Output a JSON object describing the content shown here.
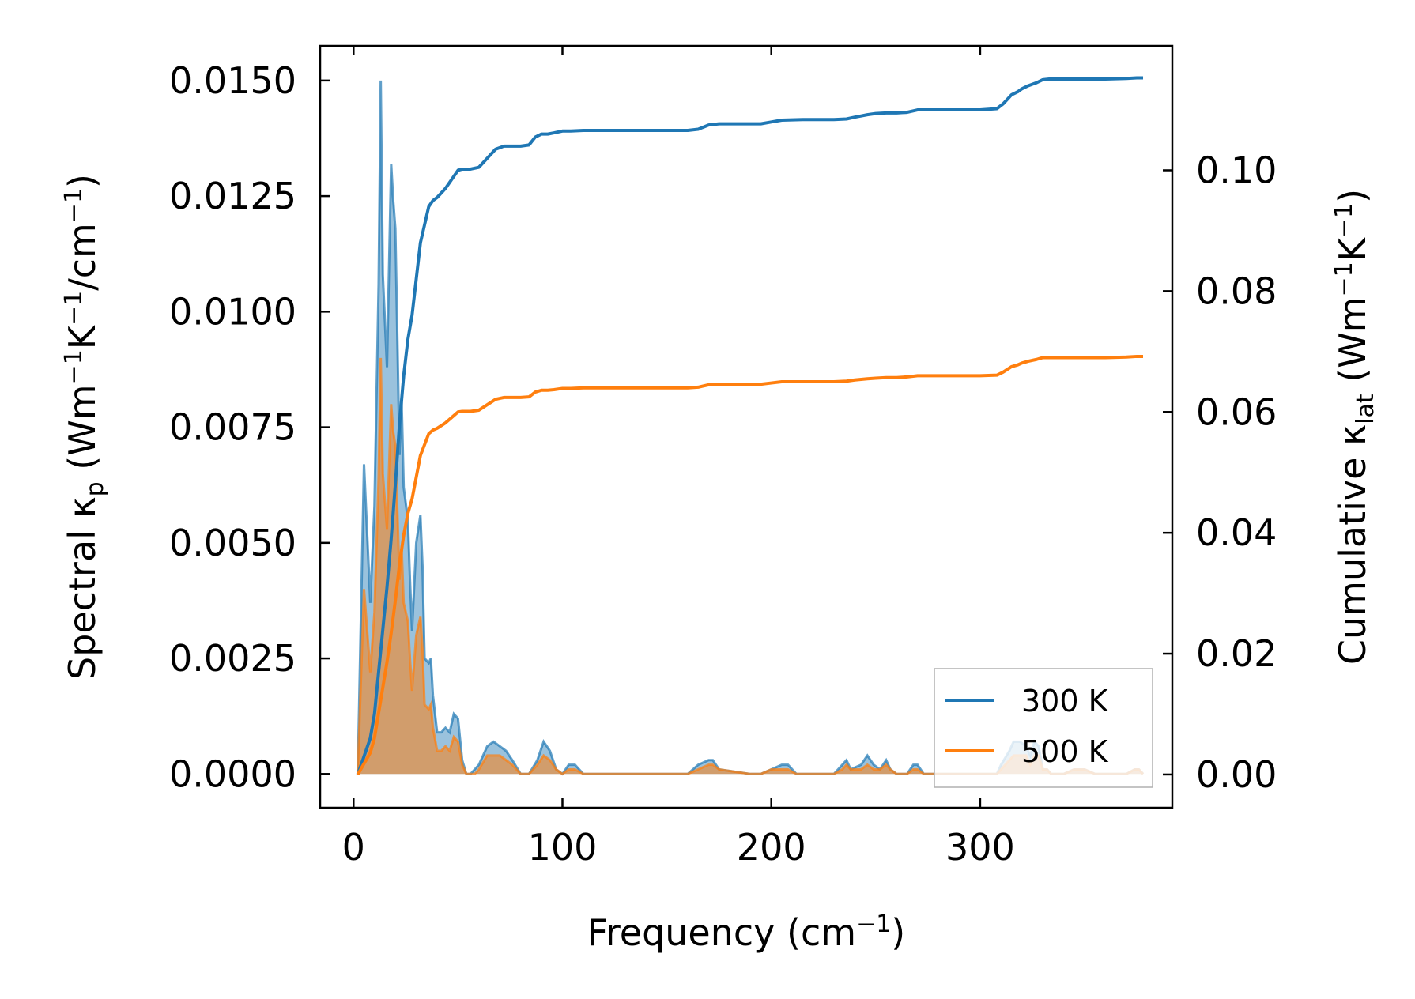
{
  "chart_data": {
    "type": "line",
    "xlabel_main": "Frequency (cm",
    "xlabel_sup": "−1",
    "xlabel_end": ")",
    "ylabel_left_main": "Spectral κ",
    "ylabel_left_sub": "p",
    "ylabel_left_units_a": " (Wm",
    "ylabel_left_units_sup1": "−1",
    "ylabel_left_units_b": "K",
    "ylabel_left_units_sup2": "−1",
    "ylabel_left_units_c": "/cm",
    "ylabel_left_units_sup3": "−1",
    "ylabel_left_units_d": ")",
    "ylabel_right_main": "Cumulative κ",
    "ylabel_right_sub": "lat",
    "ylabel_right_units_a": " (Wm",
    "ylabel_right_units_sup1": "−1",
    "ylabel_right_units_b": "K",
    "ylabel_right_units_sup2": "−1",
    "ylabel_right_units_c": ")",
    "xlim": [
      -16,
      392
    ],
    "ylim_left": [
      -0.00073,
      0.01575
    ],
    "ylim_right": [
      -0.0055,
      0.1206
    ],
    "x_ticks": [
      0,
      100,
      200,
      300
    ],
    "x_tick_labels": [
      "0",
      "100",
      "200",
      "300"
    ],
    "y_left_ticks": [
      0.0,
      0.0025,
      0.005,
      0.0075,
      0.01,
      0.0125,
      0.015
    ],
    "y_left_tick_labels": [
      "0.0000",
      "0.0025",
      "0.0050",
      "0.0075",
      "0.0100",
      "0.0125",
      "0.0150"
    ],
    "y_right_ticks": [
      0.0,
      0.02,
      0.04,
      0.06,
      0.08,
      0.1
    ],
    "y_right_tick_labels": [
      "0.00",
      "0.02",
      "0.04",
      "0.06",
      "0.08",
      "0.10"
    ],
    "legend_position": "lower-right",
    "series": [
      {
        "name": "300 K",
        "color": "#1f77b4",
        "spectral_x": [
          2,
          5,
          8,
          10,
          12,
          13,
          14,
          16,
          18,
          19,
          20,
          22,
          23,
          24,
          26,
          27,
          28,
          30,
          32,
          33,
          34,
          36,
          37,
          38,
          40,
          42,
          44,
          46,
          48,
          50,
          52,
          54,
          56,
          58,
          60,
          64,
          67,
          70,
          73,
          76,
          80,
          84,
          88,
          91,
          94,
          97,
          100,
          103,
          106,
          110,
          115,
          120,
          140,
          160,
          165,
          170,
          172,
          175,
          190,
          195,
          200,
          205,
          208,
          212,
          220,
          230,
          234,
          236,
          238,
          243,
          246,
          249,
          252,
          255,
          257,
          260,
          265,
          268,
          270,
          273,
          280,
          300,
          308,
          310,
          314,
          316,
          319,
          322,
          324,
          326,
          328,
          330,
          332,
          334,
          336,
          340,
          345,
          350,
          355,
          360,
          365,
          370,
          374,
          376,
          378
        ],
        "spectral_y": [
          0.0,
          0.0067,
          0.0037,
          0.0058,
          0.0106,
          0.015,
          0.0108,
          0.0088,
          0.0132,
          0.0124,
          0.0118,
          0.0069,
          0.0081,
          0.0062,
          0.0055,
          0.0042,
          0.0031,
          0.005,
          0.0056,
          0.0045,
          0.0025,
          0.0024,
          0.0025,
          0.0017,
          0.0009,
          0.0009,
          0.001,
          0.0009,
          0.0013,
          0.0012,
          0.0003,
          0.0,
          0.0,
          0.0001,
          0.0002,
          0.0006,
          0.0007,
          0.0006,
          0.0005,
          0.0003,
          0.0,
          0.0,
          0.0003,
          0.0007,
          0.0005,
          0.0001,
          0.0,
          0.0002,
          0.0002,
          0.0,
          0.0,
          0.0,
          0.0,
          0.0,
          0.0002,
          0.0003,
          0.0003,
          0.0001,
          0.0,
          0.0,
          0.0001,
          0.0002,
          0.0002,
          0.0,
          0.0,
          0.0,
          0.0002,
          0.0003,
          0.0001,
          0.0002,
          0.0004,
          0.0002,
          0.0001,
          0.0003,
          0.0001,
          0.0,
          0.0,
          0.0002,
          0.0002,
          0.0,
          0.0,
          0.0,
          0.0,
          0.0002,
          0.0005,
          0.0007,
          0.0007,
          0.0006,
          0.0004,
          0.0007,
          0.0006,
          0.0001,
          0.0001,
          0.0,
          0.0,
          0.0,
          0.0001,
          0.0001,
          0.0,
          0.0,
          0.0,
          0.0,
          0.0001,
          0.0001,
          0.0
        ],
        "cumulative_x": [
          2,
          4,
          6,
          8,
          10,
          12,
          14,
          16,
          18,
          20,
          22,
          24,
          26,
          28,
          30,
          32,
          34,
          36,
          38,
          40,
          44,
          48,
          50,
          52,
          56,
          60,
          64,
          68,
          72,
          76,
          80,
          84,
          87,
          90,
          93,
          96,
          100,
          104,
          110,
          130,
          150,
          160,
          165,
          170,
          175,
          190,
          195,
          200,
          205,
          215,
          230,
          236,
          240,
          243,
          246,
          250,
          255,
          260,
          265,
          270,
          275,
          280,
          300,
          308,
          311,
          315,
          318,
          320,
          323,
          327,
          330,
          333,
          340,
          350,
          360,
          370,
          375,
          378
        ],
        "cumulative_y": [
          0.0,
          0.002,
          0.004,
          0.006,
          0.01,
          0.017,
          0.024,
          0.031,
          0.039,
          0.048,
          0.058,
          0.066,
          0.072,
          0.076,
          0.082,
          0.088,
          0.091,
          0.094,
          0.095,
          0.0955,
          0.097,
          0.099,
          0.1,
          0.1002,
          0.1002,
          0.1005,
          0.102,
          0.1035,
          0.104,
          0.104,
          0.104,
          0.1042,
          0.1055,
          0.106,
          0.106,
          0.1062,
          0.1065,
          0.1065,
          0.1066,
          0.1066,
          0.1066,
          0.1066,
          0.1068,
          0.1075,
          0.1077,
          0.1077,
          0.1077,
          0.108,
          0.1083,
          0.1084,
          0.1084,
          0.1085,
          0.1088,
          0.109,
          0.1092,
          0.1094,
          0.1095,
          0.1095,
          0.1096,
          0.11,
          0.11,
          0.11,
          0.11,
          0.1102,
          0.111,
          0.1125,
          0.113,
          0.1135,
          0.114,
          0.1145,
          0.115,
          0.1151,
          0.1151,
          0.1151,
          0.1151,
          0.1152,
          0.1153,
          0.1153
        ]
      },
      {
        "name": "500 K",
        "color": "#ff7f0e",
        "spectral_x": [
          2,
          5,
          8,
          10,
          12,
          13,
          14,
          16,
          18,
          19,
          20,
          22,
          23,
          24,
          26,
          27,
          28,
          30,
          32,
          33,
          34,
          36,
          37,
          38,
          40,
          42,
          44,
          46,
          48,
          50,
          52,
          54,
          56,
          58,
          60,
          64,
          67,
          70,
          73,
          76,
          80,
          84,
          88,
          91,
          94,
          97,
          100,
          103,
          106,
          110,
          115,
          120,
          140,
          160,
          165,
          170,
          172,
          175,
          190,
          195,
          200,
          205,
          208,
          212,
          220,
          230,
          234,
          236,
          238,
          243,
          246,
          249,
          252,
          255,
          257,
          260,
          265,
          268,
          270,
          273,
          280,
          300,
          308,
          310,
          314,
          316,
          319,
          322,
          324,
          326,
          328,
          330,
          332,
          334,
          336,
          340,
          345,
          350,
          355,
          360,
          365,
          370,
          374,
          376,
          378
        ],
        "spectral_y": [
          0.0,
          0.004,
          0.0022,
          0.0035,
          0.0064,
          0.009,
          0.0065,
          0.0053,
          0.008,
          0.0074,
          0.0071,
          0.0042,
          0.0049,
          0.0037,
          0.0033,
          0.0025,
          0.0018,
          0.003,
          0.0034,
          0.0027,
          0.0015,
          0.0014,
          0.0015,
          0.001,
          0.0005,
          0.0005,
          0.0006,
          0.0005,
          0.0008,
          0.0007,
          0.0002,
          0.0,
          0.0,
          0.0,
          0.0001,
          0.0004,
          0.0004,
          0.0004,
          0.0003,
          0.0002,
          0.0,
          0.0,
          0.0002,
          0.0004,
          0.0003,
          0.0001,
          0.0,
          0.0001,
          0.0001,
          0.0,
          0.0,
          0.0,
          0.0,
          0.0,
          0.0001,
          0.0002,
          0.0002,
          0.0001,
          0.0,
          0.0,
          0.0001,
          0.0001,
          0.0001,
          0.0,
          0.0,
          0.0,
          0.0001,
          0.0002,
          0.0001,
          0.0001,
          0.0002,
          0.0001,
          0.0001,
          0.0002,
          0.0001,
          0.0,
          0.0,
          0.0001,
          0.0001,
          0.0,
          0.0,
          0.0,
          0.0,
          0.0001,
          0.0003,
          0.0004,
          0.0004,
          0.0004,
          0.0002,
          0.0004,
          0.0004,
          0.0001,
          0.0001,
          0.0,
          0.0,
          0.0,
          0.0001,
          0.0001,
          0.0,
          0.0,
          0.0,
          0.0,
          0.0001,
          0.0001,
          0.0
        ],
        "cumulative_x": [
          2,
          4,
          6,
          8,
          10,
          12,
          14,
          16,
          18,
          20,
          22,
          24,
          26,
          28,
          30,
          32,
          34,
          36,
          38,
          40,
          44,
          48,
          50,
          52,
          56,
          60,
          64,
          68,
          72,
          76,
          80,
          84,
          87,
          90,
          93,
          96,
          100,
          104,
          110,
          130,
          150,
          160,
          165,
          170,
          175,
          190,
          195,
          200,
          205,
          215,
          230,
          236,
          240,
          243,
          246,
          250,
          255,
          260,
          265,
          270,
          275,
          280,
          300,
          308,
          311,
          315,
          318,
          320,
          323,
          327,
          330,
          333,
          340,
          350,
          360,
          370,
          375,
          378
        ],
        "cumulative_y": [
          0.0,
          0.0012,
          0.0024,
          0.0036,
          0.006,
          0.0102,
          0.0144,
          0.0186,
          0.0234,
          0.0288,
          0.0348,
          0.0396,
          0.0432,
          0.0456,
          0.0492,
          0.0528,
          0.0546,
          0.0564,
          0.057,
          0.0573,
          0.0582,
          0.0594,
          0.06,
          0.0601,
          0.0601,
          0.0603,
          0.0612,
          0.0621,
          0.0624,
          0.0624,
          0.0624,
          0.0625,
          0.0633,
          0.0636,
          0.0636,
          0.0637,
          0.0639,
          0.0639,
          0.064,
          0.064,
          0.064,
          0.064,
          0.0641,
          0.0645,
          0.0646,
          0.0646,
          0.0646,
          0.0648,
          0.065,
          0.065,
          0.065,
          0.0651,
          0.0653,
          0.0654,
          0.0655,
          0.0656,
          0.0657,
          0.0657,
          0.0658,
          0.066,
          0.066,
          0.066,
          0.066,
          0.0661,
          0.0666,
          0.0675,
          0.0678,
          0.0681,
          0.0684,
          0.0687,
          0.069,
          0.069,
          0.069,
          0.069,
          0.069,
          0.0691,
          0.0692,
          0.0692
        ]
      }
    ]
  }
}
